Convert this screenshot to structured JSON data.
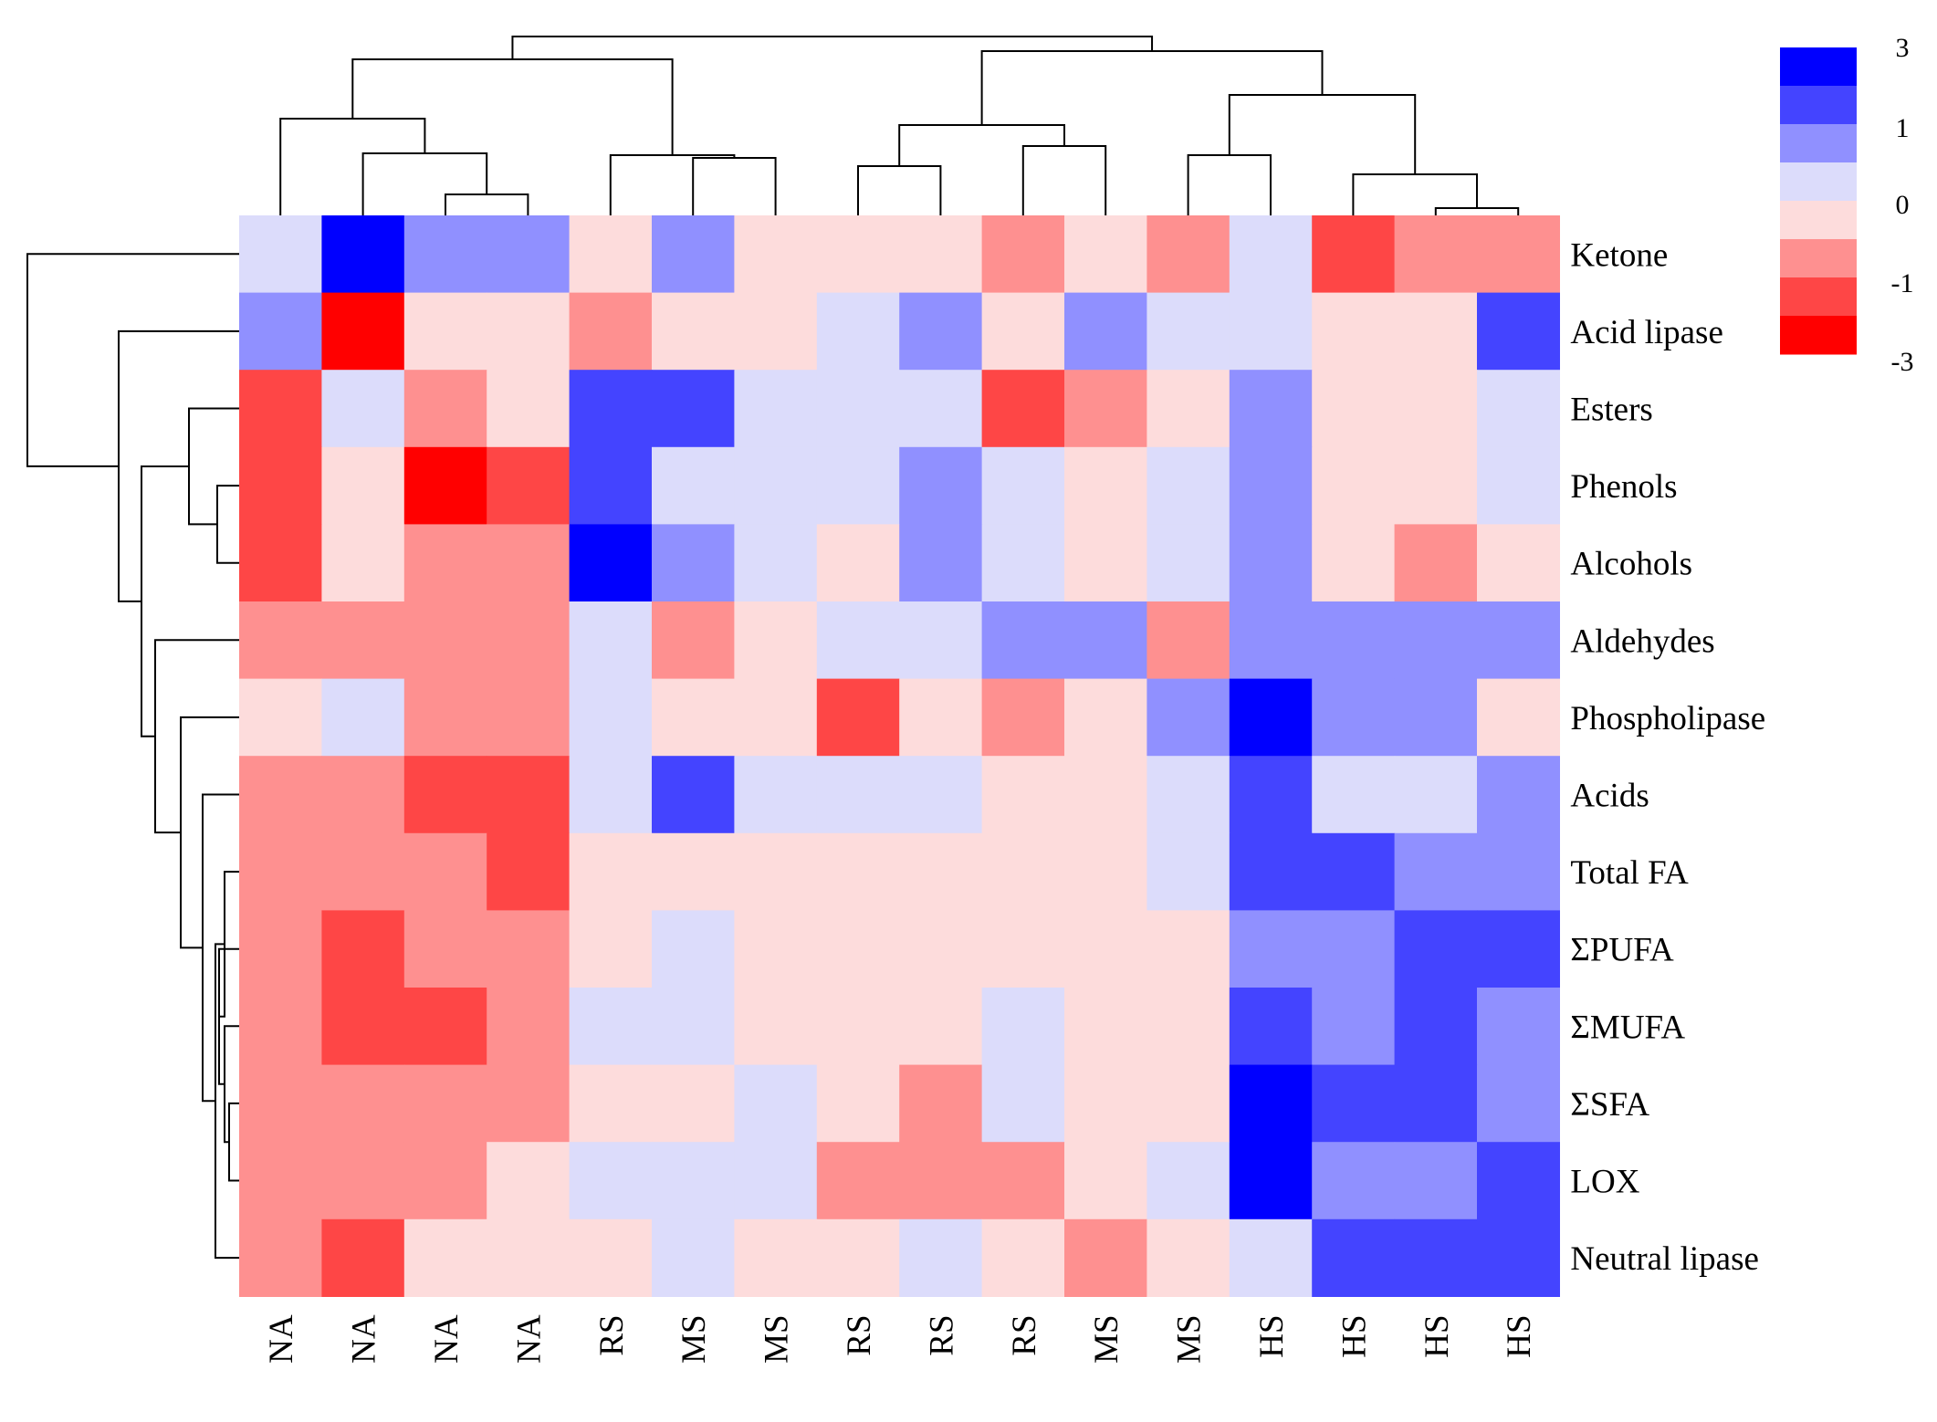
{
  "chart_data": {
    "type": "heatmap",
    "title": "",
    "xlabel": "",
    "ylabel": "",
    "columns": [
      "NA",
      "NA",
      "NA",
      "NA",
      "RS",
      "MS",
      "MS",
      "RS",
      "RS",
      "RS",
      "MS",
      "MS",
      "HS",
      "HS",
      "HS",
      "HS"
    ],
    "rows": [
      "Ketone",
      "Acid lipase",
      "Esters",
      "Phenols",
      "Alcohols",
      "Aldehydes",
      "Phospholipase",
      "Acids",
      "Total FA",
      "ΣPUFA",
      "ΣMUFA",
      "ΣSFA",
      "LOX",
      "Neutral lipase"
    ],
    "values": [
      [
        0.5,
        3,
        1.5,
        1.5,
        -0.5,
        1.5,
        -0.5,
        -0.5,
        -0.5,
        -1.5,
        -0.5,
        -1.5,
        0.5,
        -2,
        -1.5,
        -1.5
      ],
      [
        1.5,
        -3,
        -0.5,
        -0.5,
        -1.5,
        -0.5,
        -0.5,
        0.5,
        1.5,
        -0.5,
        1.5,
        0.5,
        0.5,
        -0.5,
        -0.5,
        2
      ],
      [
        -2,
        0.5,
        -1.5,
        -0.5,
        2,
        2,
        0.5,
        0.5,
        0.5,
        -2,
        -1.5,
        -0.5,
        1.5,
        -0.5,
        -0.5,
        0.5
      ],
      [
        -2,
        -0.5,
        -3,
        -2,
        2,
        0.5,
        0.5,
        0.5,
        1.5,
        0.5,
        -0.5,
        0.5,
        1.5,
        -0.5,
        -0.5,
        0.5
      ],
      [
        -2,
        -0.5,
        -1.5,
        -1.5,
        3,
        1.5,
        0.5,
        -0.5,
        1.5,
        0.5,
        -0.5,
        0.5,
        1.5,
        -0.5,
        -1.5,
        -0.5
      ],
      [
        -1.5,
        -1.5,
        -1.5,
        -1.5,
        0.5,
        -1.5,
        -0.5,
        0.5,
        0.5,
        1.5,
        1.5,
        -1.5,
        1.5,
        1.5,
        1.5,
        1.5
      ],
      [
        -0.5,
        0.5,
        -1.5,
        -1.5,
        0.5,
        -0.5,
        -0.5,
        -2,
        -0.5,
        -1.5,
        -0.5,
        1.5,
        3,
        1.5,
        1.5,
        -0.5
      ],
      [
        -1.5,
        -1.5,
        -2,
        -2,
        0.5,
        2,
        0.5,
        0.5,
        0.5,
        -0.5,
        -0.5,
        0.5,
        2,
        0.5,
        0.5,
        1.5
      ],
      [
        -1.5,
        -1.5,
        -1.5,
        -2,
        -0.5,
        -0.5,
        -0.5,
        -0.5,
        -0.5,
        -0.5,
        -0.5,
        0.5,
        2,
        2,
        1.5,
        1.5
      ],
      [
        -1.5,
        -2,
        -1.5,
        -1.5,
        -0.5,
        0.5,
        -0.5,
        -0.5,
        -0.5,
        -0.5,
        -0.5,
        -0.5,
        1.5,
        1.5,
        2,
        2
      ],
      [
        -1.5,
        -2,
        -2,
        -1.5,
        0.5,
        0.5,
        -0.5,
        -0.5,
        -0.5,
        0.5,
        -0.5,
        -0.5,
        2,
        1.5,
        2,
        1.5
      ],
      [
        -1.5,
        -1.5,
        -1.5,
        -1.5,
        -0.5,
        -0.5,
        0.5,
        -0.5,
        -1.5,
        0.5,
        -0.5,
        -0.5,
        3,
        2,
        2,
        1.5
      ],
      [
        -1.5,
        -1.5,
        -1.5,
        -0.5,
        0.5,
        0.5,
        0.5,
        -1.5,
        -1.5,
        -1.5,
        -0.5,
        0.5,
        3,
        1.5,
        1.5,
        2
      ],
      [
        -1.5,
        -2,
        -0.5,
        -0.5,
        -0.5,
        0.5,
        -0.5,
        -0.5,
        0.5,
        -0.5,
        -1.5,
        -0.5,
        0.5,
        2,
        2,
        2
      ]
    ],
    "color_scale": {
      "levels": [
        3,
        2,
        1.5,
        0.5,
        -0.5,
        -1.5,
        -2,
        -3
      ],
      "colors": [
        "#0000ff",
        "#4444ff",
        "#9090ff",
        "#dcdcfb",
        "#fddcdc",
        "#fe9090",
        "#fe4646",
        "#ff0000"
      ],
      "tick_labels": [
        "3",
        "1",
        "0",
        "-1",
        "-3"
      ],
      "legend_position": "top-right"
    },
    "row_dendrogram": true,
    "column_dendrogram": true
  }
}
